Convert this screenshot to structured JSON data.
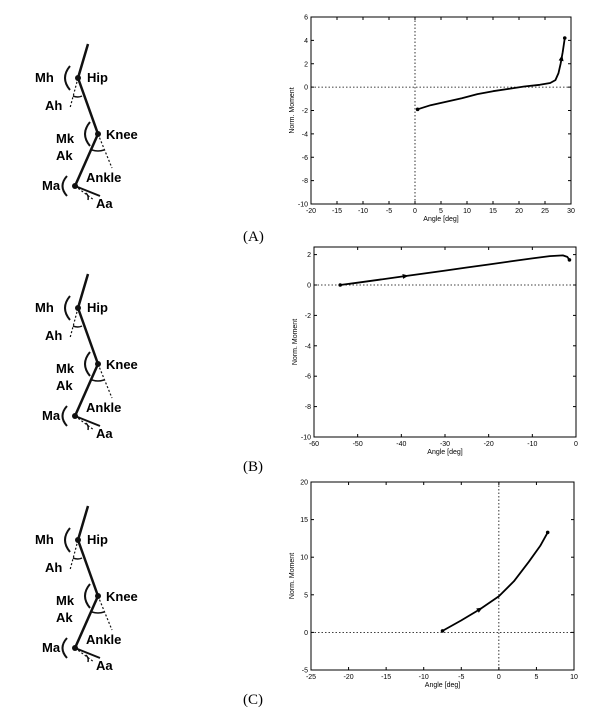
{
  "diagram_labels": {
    "hip": "Hip",
    "knee": "Knee",
    "ankle": "Ankle",
    "mh": "Mh",
    "ah": "Ah",
    "mk": "Mk",
    "ak": "Ak",
    "ma": "Ma",
    "aa": "Aa"
  },
  "panel_labels": [
    "(A)",
    "(B)",
    "(C)"
  ],
  "chart_data": [
    {
      "type": "line",
      "xlabel": "Angle [deg]",
      "ylabel": "Norm. Moment",
      "xlim": [
        -20,
        30
      ],
      "ylim": [
        -10,
        6
      ],
      "xticks": [
        -20,
        -15,
        -10,
        -5,
        0,
        5,
        10,
        15,
        20,
        25,
        30
      ],
      "yticks": [
        -10,
        -8,
        -6,
        -4,
        -2,
        0,
        2,
        4,
        6
      ],
      "zero_lines": true,
      "series": [
        {
          "x": [
            0.5,
            3,
            6,
            9,
            12,
            15,
            18,
            21,
            24,
            26,
            27,
            27.6,
            28,
            28.4,
            28.8
          ],
          "y": [
            -1.9,
            -1.55,
            -1.25,
            -0.95,
            -0.6,
            -0.35,
            -0.15,
            0.05,
            0.2,
            0.35,
            0.6,
            1.2,
            2.0,
            3.0,
            4.2
          ]
        }
      ],
      "arrow_at": 28.2
    },
    {
      "type": "line",
      "xlabel": "Angle [deg]",
      "ylabel": "Norm. Moment",
      "xlim": [
        -60,
        0
      ],
      "ylim": [
        -10,
        2.5
      ],
      "xticks": [
        -60,
        -50,
        -40,
        -30,
        -20,
        -10,
        0
      ],
      "yticks": [
        -10,
        -8,
        -6,
        -4,
        -2,
        0,
        2
      ],
      "zero_lines": true,
      "series": [
        {
          "x": [
            -54,
            -50,
            -45,
            -40,
            -35,
            -30,
            -25,
            -20,
            -15,
            -10,
            -6,
            -3,
            -2,
            -1.5
          ],
          "y": [
            0,
            0.15,
            0.35,
            0.55,
            0.75,
            0.95,
            1.15,
            1.35,
            1.55,
            1.75,
            1.9,
            1.95,
            1.85,
            1.65
          ]
        }
      ],
      "arrow_at": -39
    },
    {
      "type": "line",
      "xlabel": "Angle [deg]",
      "ylabel": "Norm. Moment",
      "xlim": [
        -25,
        10
      ],
      "ylim": [
        -5,
        20
      ],
      "xticks": [
        -25,
        -20,
        -15,
        -10,
        -5,
        0,
        5,
        10
      ],
      "yticks": [
        -5,
        0,
        5,
        10,
        15,
        20
      ],
      "zero_lines": true,
      "series": [
        {
          "x": [
            -7.5,
            -5,
            -2.5,
            0,
            2,
            4,
            5.5,
            6.5
          ],
          "y": [
            0.2,
            1.6,
            3.1,
            4.8,
            6.8,
            9.4,
            11.5,
            13.3
          ]
        }
      ],
      "arrow_at": -2.5
    }
  ]
}
